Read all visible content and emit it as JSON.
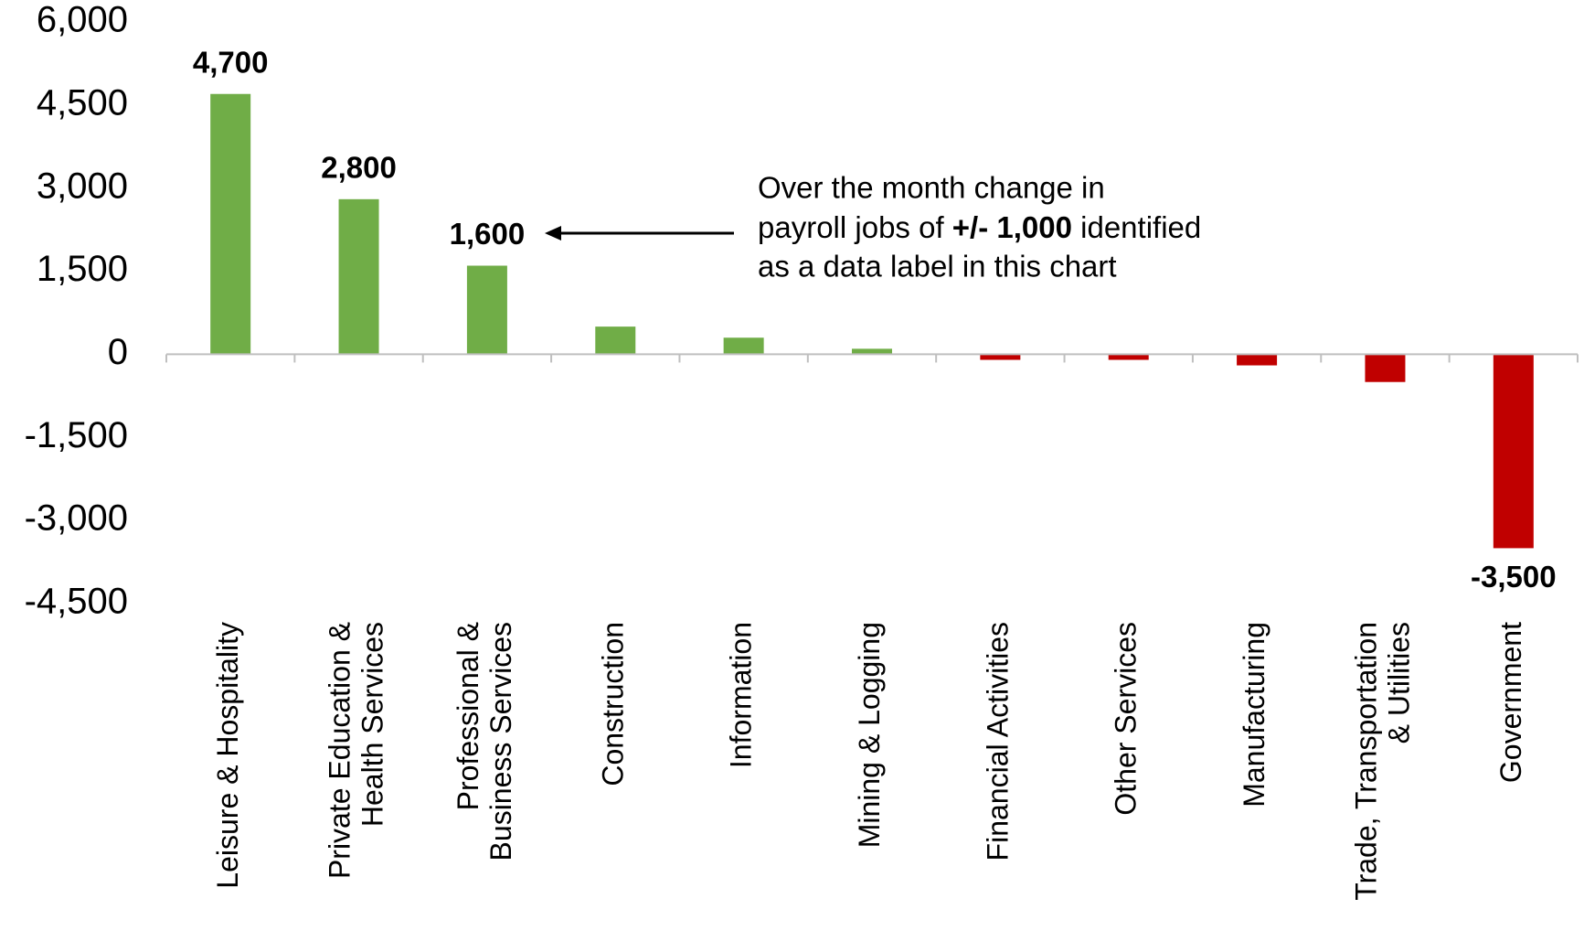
{
  "chart_data": {
    "type": "bar",
    "categories": [
      "Leisure & Hospitality",
      "Private Education &\nHealth Services",
      "Professional &\nBusiness Services",
      "Construction",
      "Information",
      "Mining & Logging",
      "Financial Activities",
      "Other Services",
      "Manufacturing",
      "Trade, Transportation\n& Utilities",
      "Government"
    ],
    "values": [
      4700,
      2800,
      1600,
      500,
      300,
      100,
      -100,
      -100,
      -200,
      -500,
      -3500
    ],
    "value_labels": [
      "4,700",
      "2,800",
      "1,600",
      null,
      null,
      null,
      null,
      null,
      null,
      null,
      "-3,500"
    ],
    "positive_color": "#70ad47",
    "negative_color": "#c00000",
    "ylim": [
      -4500,
      6000
    ],
    "yticks": [
      {
        "value": -4500,
        "label": "-4,500"
      },
      {
        "value": -3000,
        "label": "-3,000"
      },
      {
        "value": -1500,
        "label": "-1,500"
      },
      0,
      {
        "value": 1500,
        "label": "1,500"
      },
      {
        "value": 3000,
        "label": "3,000"
      },
      {
        "value": 4500,
        "label": "4,500"
      },
      {
        "value": 6000,
        "label": "6,000"
      }
    ],
    "grid": false,
    "annotation": {
      "line1": "Over the month change in",
      "line2a": "payroll jobs of ",
      "line2b": "+/- 1,000",
      "line2c": " identified",
      "line3": "as a data label in this chart"
    }
  }
}
